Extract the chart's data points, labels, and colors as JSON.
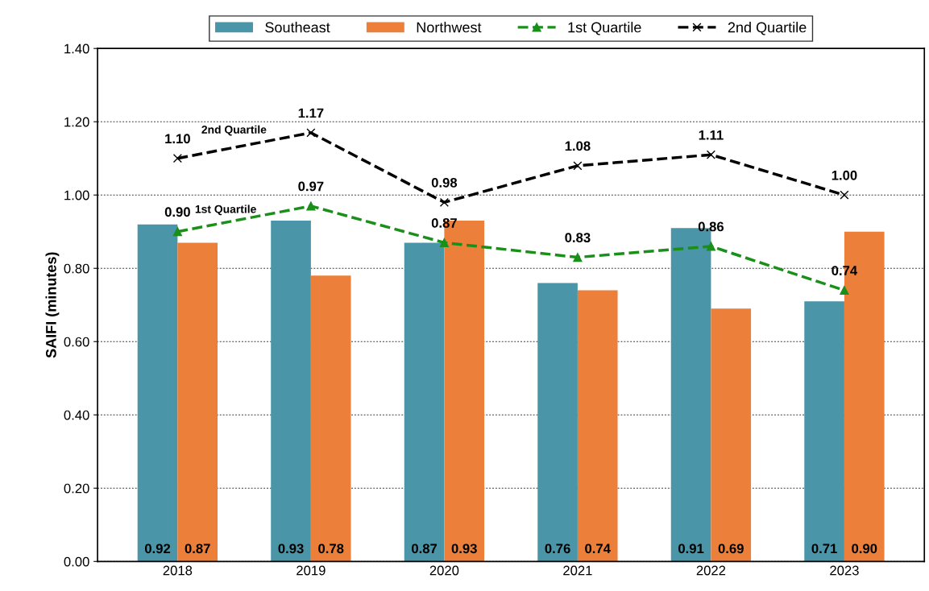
{
  "chart_data": {
    "type": "bar",
    "ylabel": "SAIFI (minutes)",
    "categories": [
      "2018",
      "2019",
      "2020",
      "2021",
      "2022",
      "2023"
    ],
    "series": [
      {
        "name": "Southeast",
        "color": "#4a95a8",
        "values": [
          0.92,
          0.93,
          0.87,
          0.76,
          0.91,
          0.71
        ],
        "value_labels": [
          "0.92",
          "0.93",
          "0.87",
          "0.76",
          "0.91",
          "0.71"
        ]
      },
      {
        "name": "Northwest",
        "color": "#ec7f3a",
        "values": [
          0.87,
          0.78,
          0.93,
          0.74,
          0.69,
          0.9
        ],
        "value_labels": [
          "0.87",
          "0.78",
          "0.93",
          "0.74",
          "0.69",
          "0.90"
        ]
      },
      {
        "name": "1st Quartile",
        "type": "line",
        "color": "#1a8f1a",
        "marker": "triangle",
        "line_style": "dashed",
        "values": [
          0.9,
          0.97,
          0.87,
          0.83,
          0.86,
          0.74
        ],
        "value_labels": [
          "0.90",
          "0.97",
          "0.87",
          "0.83",
          "0.86",
          "0.74"
        ]
      },
      {
        "name": "2nd Quartile",
        "type": "line",
        "color": "#000000",
        "marker": "cross",
        "line_style": "dashed",
        "values": [
          1.1,
          1.17,
          0.98,
          1.08,
          1.11,
          1.0
        ],
        "value_labels": [
          "1.10",
          "1.17",
          "0.98",
          "1.08",
          "1.11",
          "1.00"
        ]
      }
    ],
    "annotations": [
      "2nd Quartile",
      "1st Quartile"
    ],
    "ylim": [
      0,
      1.4
    ],
    "yticks": [
      {
        "value": 0,
        "label": "0.00"
      },
      {
        "value": 0.2,
        "label": "0.20"
      },
      {
        "value": 0.4,
        "label": "0.40"
      },
      {
        "value": 0.6,
        "label": "0.60"
      },
      {
        "value": 0.8,
        "label": "0.80"
      },
      {
        "value": 1.0,
        "label": "1.00"
      },
      {
        "value": 1.2,
        "label": "1.20"
      },
      {
        "value": 1.4,
        "label": "1.40"
      }
    ],
    "grid": "y",
    "legend": "top"
  }
}
